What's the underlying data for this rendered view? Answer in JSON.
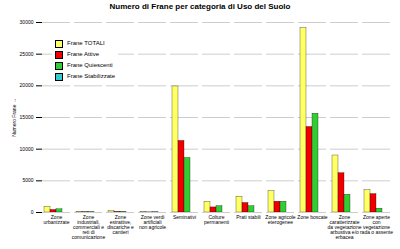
{
  "chart_data": {
    "type": "bar",
    "title": "Numero di Frane per categoria di Uso del Suolo",
    "y_label": "Numero Frane",
    "categories": [
      "Zone urbanizzate",
      "Zone industriali, commerciali e reti di comunicazione",
      "Zone estrattive, discariche e cantieri",
      "Zone verdi artificiali non agricole",
      "Seminativi",
      "Colture permanenti",
      "Prati stabili",
      "Zone agricole eterogenee",
      "Zone boscate",
      "Zone caratterizzate da vegetazione arbustiva e/o erbacea",
      "Zone aperte con vegetazione rada o assente"
    ],
    "series": [
      {
        "name": "Frane TOTALI",
        "color": "#ffff66",
        "values": [
          900,
          100,
          200,
          50,
          19900,
          1700,
          2500,
          3400,
          29100,
          9000,
          3500
        ]
      },
      {
        "name": "Frane Attive",
        "color": "#ee0000",
        "values": [
          400,
          50,
          100,
          20,
          11300,
          800,
          1500,
          1700,
          13500,
          6200,
          2900
        ]
      },
      {
        "name": "Frane Quiescenti",
        "color": "#33cc33",
        "values": [
          500,
          50,
          100,
          30,
          8600,
          1000,
          1000,
          1700,
          15600,
          2800,
          600
        ]
      },
      {
        "name": "Frane Stabilizzate",
        "color": "#33cccc",
        "values": [
          0,
          0,
          0,
          0,
          0,
          0,
          0,
          0,
          0,
          0,
          0
        ]
      }
    ],
    "ylim": [
      0,
      30000
    ],
    "yticks": [
      0,
      5000,
      10000,
      15000,
      20000,
      25000,
      30000
    ],
    "grid": true,
    "legend": "upper left"
  }
}
